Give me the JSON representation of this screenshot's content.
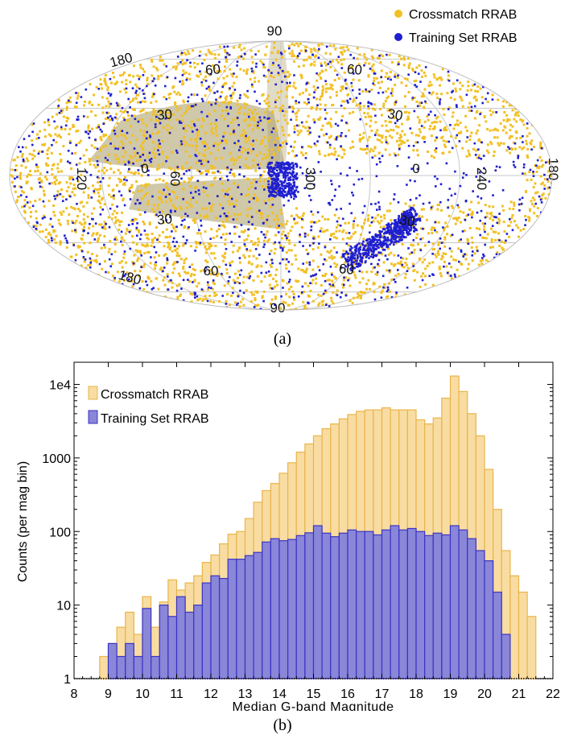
{
  "captions": {
    "a": "(a)",
    "b": "(b)"
  },
  "colors": {
    "crossmatch": "#f2c025",
    "crossmatch_hist_fill": "#f8dca2",
    "crossmatch_hist_edge": "#e9b54a",
    "training": "#1f1fd0",
    "training_hist_fill": "#8a86d8",
    "training_hist_edge": "#3a34c4",
    "dense_band": "#a89a62"
  },
  "chart_data": [
    {
      "type": "scatter",
      "projection": "aitoff",
      "legend": {
        "placement": "top-right",
        "entries": [
          "Crossmatch RRAB",
          "Training Set RRAB"
        ]
      },
      "series": [
        {
          "name": "Crossmatch RRAB",
          "color": "#f2c025"
        },
        {
          "name": "Training Set RRAB",
          "color": "#1f1fd0"
        }
      ],
      "grid": true,
      "tick_labels": [
        "90",
        "180",
        "60",
        "60",
        "30",
        "30",
        "120",
        "0",
        "60",
        "300",
        "0",
        "240",
        "180",
        "30",
        "30",
        "60",
        "60",
        "180",
        "90"
      ]
    },
    {
      "type": "bar",
      "xlabel": "Median G-band Magnitude",
      "ylabel": "Counts (per mag bin)",
      "yscale": "log",
      "xlim": [
        8,
        22
      ],
      "ylim": [
        1,
        20000
      ],
      "xticks": [
        "8",
        "9",
        "10",
        "11",
        "12",
        "13",
        "14",
        "15",
        "16",
        "17",
        "18",
        "19",
        "20",
        "21",
        "22"
      ],
      "yticks": [
        "1",
        "10",
        "100",
        "1000",
        "1e4"
      ],
      "bin_width": 0.25,
      "bin_starts": [
        8.75,
        9.0,
        9.25,
        9.5,
        9.75,
        10.0,
        10.25,
        10.5,
        10.75,
        11.0,
        11.25,
        11.5,
        11.75,
        12.0,
        12.25,
        12.5,
        12.75,
        13.0,
        13.25,
        13.5,
        13.75,
        14.0,
        14.25,
        14.5,
        14.75,
        15.0,
        15.25,
        15.5,
        15.75,
        16.0,
        16.25,
        16.5,
        16.75,
        17.0,
        17.25,
        17.5,
        17.75,
        18.0,
        18.25,
        18.5,
        18.75,
        19.0,
        19.25,
        19.5,
        19.75,
        20.0,
        20.25,
        20.5,
        20.75,
        21.0,
        21.25
      ],
      "grid": false,
      "legend": {
        "placement": "top-left"
      },
      "series": [
        {
          "name": "Crossmatch RRAB",
          "values": [
            2,
            3,
            5,
            8,
            4,
            13,
            5,
            11,
            22,
            16,
            20,
            25,
            38,
            48,
            68,
            92,
            100,
            150,
            250,
            360,
            450,
            620,
            860,
            1200,
            1550,
            2000,
            2500,
            2900,
            3400,
            3900,
            4300,
            4500,
            4500,
            4800,
            4500,
            4500,
            4500,
            3300,
            2900,
            3500,
            6500,
            13000,
            8000,
            4000,
            2000,
            700,
            200,
            55,
            25,
            15,
            7
          ]
        },
        {
          "name": "Training Set RRAB",
          "values": [
            0,
            3,
            2,
            3,
            2,
            9,
            2,
            10,
            7,
            13,
            8,
            10,
            20,
            25,
            23,
            42,
            42,
            47,
            52,
            72,
            80,
            75,
            78,
            88,
            96,
            120,
            95,
            85,
            95,
            105,
            100,
            100,
            90,
            105,
            120,
            105,
            110,
            100,
            88,
            95,
            90,
            120,
            105,
            80,
            55,
            40,
            15,
            4,
            0,
            0,
            0
          ]
        }
      ]
    }
  ]
}
